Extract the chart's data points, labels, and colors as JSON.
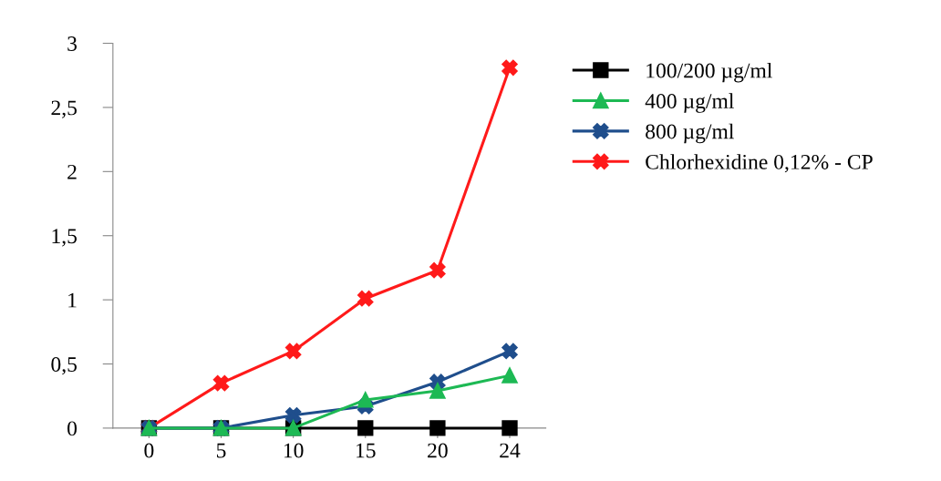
{
  "chart_data": {
    "type": "line",
    "categories": [
      "0",
      "5",
      "10",
      "15",
      "20",
      "24"
    ],
    "ylim": [
      0,
      3
    ],
    "yticks": [
      {
        "value": 0,
        "label": "0"
      },
      {
        "value": 0.5,
        "label": "0,5"
      },
      {
        "value": 1,
        "label": "1"
      },
      {
        "value": 1.5,
        "label": "1,5"
      },
      {
        "value": 2,
        "label": "2"
      },
      {
        "value": 2.5,
        "label": "2,5"
      },
      {
        "value": 3,
        "label": "3"
      }
    ],
    "grid": false,
    "legend": "right",
    "line_style": "solid",
    "series": [
      {
        "name": "100/200 µg/ml",
        "color": "#000000",
        "marker": "square",
        "values": [
          0,
          0,
          0,
          0,
          0,
          0
        ]
      },
      {
        "name": "400 µg/ml",
        "color": "#1db954",
        "marker": "triangle",
        "values": [
          0,
          0,
          0,
          0.22,
          0.29,
          0.41
        ]
      },
      {
        "name": "800 µg/ml",
        "color": "#1f4e8c",
        "marker": "cross",
        "values": [
          0,
          0,
          0.1,
          0.17,
          0.36,
          0.6
        ]
      },
      {
        "name": "Chlorhexidine 0,12% - CP",
        "color": "#ff1a1a",
        "marker": "cross",
        "values": [
          0,
          0.35,
          0.6,
          1.01,
          1.23,
          2.81
        ]
      }
    ]
  }
}
